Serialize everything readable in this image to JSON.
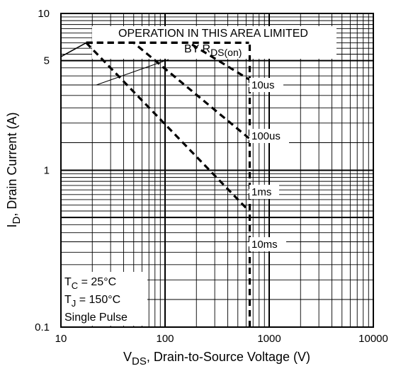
{
  "chart_data": {
    "type": "line",
    "title": "",
    "xlabel": {
      "main": "V",
      "sub": "DS",
      "rest": ", Drain-to-Source Voltage (V)"
    },
    "ylabel": {
      "main": "I",
      "sub": "D",
      "rest": ", Drain Current (A)"
    },
    "xscale": "log",
    "yscale": "log",
    "xlim": [
      10,
      10000
    ],
    "ylim": [
      0.1,
      10
    ],
    "grid": true,
    "x_ticks": [
      {
        "value": 10,
        "label": "10"
      },
      {
        "value": 100,
        "label": "100"
      },
      {
        "value": 1000,
        "label": "1000"
      },
      {
        "value": 10000,
        "label": "10000"
      }
    ],
    "y_ticks": [
      {
        "value": 0.1,
        "label": "0.1"
      },
      {
        "value": 1,
        "label": "1"
      },
      {
        "value": 5,
        "label": "5"
      },
      {
        "value": 10,
        "label": "10"
      }
    ],
    "rds_limit_line": {
      "x": [
        10,
        17.5
      ],
      "y": [
        5.3,
        6.5
      ]
    },
    "series": [
      {
        "name": "10us",
        "x": [
          17.5,
          600,
          640
        ],
        "y": [
          6.5,
          6.5,
          6.5
        ]
      },
      {
        "name": "100us",
        "x": [
          17.5,
          170,
          640
        ],
        "y": [
          6.5,
          6.5,
          3.8
        ]
      },
      {
        "name": "1ms",
        "x": [
          17.5,
          50,
          640
        ],
        "y": [
          6.5,
          6.5,
          1.6
        ]
      },
      {
        "name": "10ms",
        "x": [
          17.5,
          640
        ],
        "y": [
          6.5,
          0.55
        ]
      }
    ],
    "voltage_limit": {
      "x": 650,
      "y": [
        0.1,
        6.5
      ]
    },
    "annotation": {
      "line1": "OPERATION IN THIS AREA LIMITED",
      "line2_main": "BY R",
      "line2_sub": "DS(on)"
    },
    "conditions": [
      {
        "main": "T",
        "sub": "C",
        "rest": " = 25°C"
      },
      {
        "main": "T",
        "sub": "J",
        "rest": " = 150°C"
      },
      {
        "main": "Single Pulse",
        "sub": "",
        "rest": ""
      }
    ]
  }
}
